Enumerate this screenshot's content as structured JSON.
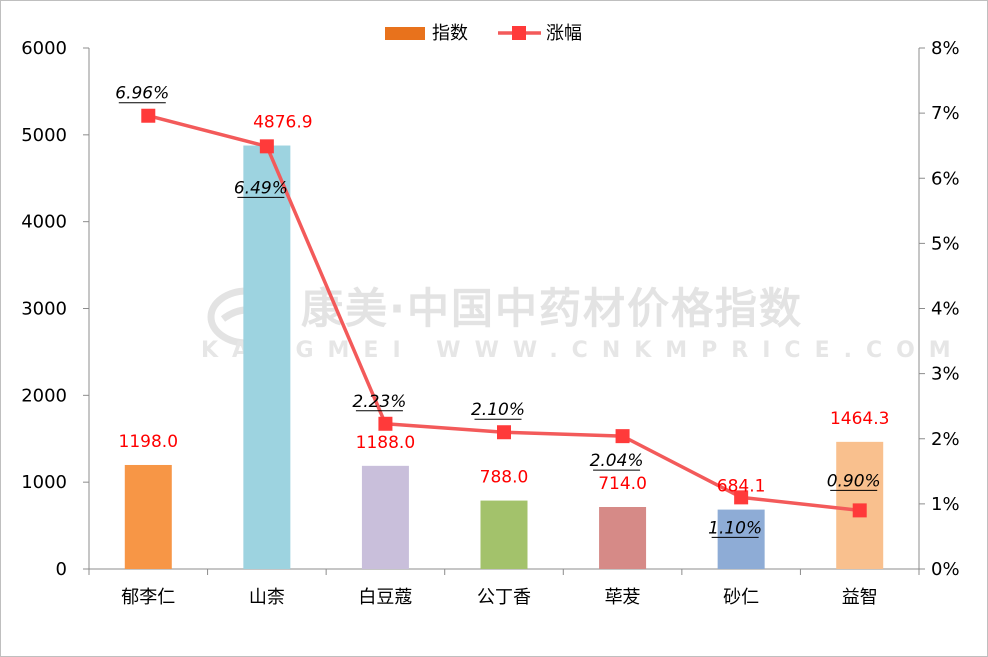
{
  "chart_data": {
    "type": "bar",
    "categories": [
      "郁李仁",
      "山柰",
      "白豆蔻",
      "公丁香",
      "荜茇",
      "砂仁",
      "益智"
    ],
    "series": [
      {
        "name": "指数",
        "type": "bar",
        "axis": "left",
        "values": [
          1198.0,
          4876.9,
          1188.0,
          788.0,
          714.0,
          684.1,
          1464.3
        ],
        "value_labels": [
          "1198.0",
          "4876.9",
          "1188.0",
          "788.0",
          "714.0",
          "684.1",
          "1464.3"
        ],
        "colors": [
          "#f79646",
          "#9dd3e0",
          "#c9bfdb",
          "#a3c26b",
          "#d68a87",
          "#8eacd6",
          "#f9c08e"
        ]
      },
      {
        "name": "涨幅",
        "type": "line",
        "axis": "right",
        "values": [
          6.96,
          6.49,
          2.23,
          2.1,
          2.04,
          1.1,
          0.9
        ],
        "value_labels": [
          "6.96%",
          "6.49%",
          "2.23%",
          "2.10%",
          "2.04%",
          "1.10%",
          "0.90%"
        ],
        "color": "#f35a5a",
        "marker_color": "#ff3a3a"
      }
    ],
    "y_left": {
      "min": 0,
      "max": 6000,
      "step": 1000,
      "tick_labels": [
        "0",
        "1000",
        "2000",
        "3000",
        "4000",
        "5000",
        "6000"
      ]
    },
    "y_right": {
      "min": 0,
      "max": 8,
      "step": 1,
      "tick_labels": [
        "0%",
        "1%",
        "2%",
        "3%",
        "4%",
        "5%",
        "6%",
        "7%",
        "8%"
      ]
    },
    "legend": {
      "placement": "top-center",
      "items": [
        {
          "label": "指数",
          "kind": "bar",
          "color": "#e8721c"
        },
        {
          "label": "涨幅",
          "kind": "line",
          "color": "#f35a5a"
        }
      ]
    },
    "grid": false,
    "watermark": {
      "line1": "康美·中国中药材价格指数",
      "line2": "KANGMEI WWW.CNKMPRICE.COM"
    }
  }
}
